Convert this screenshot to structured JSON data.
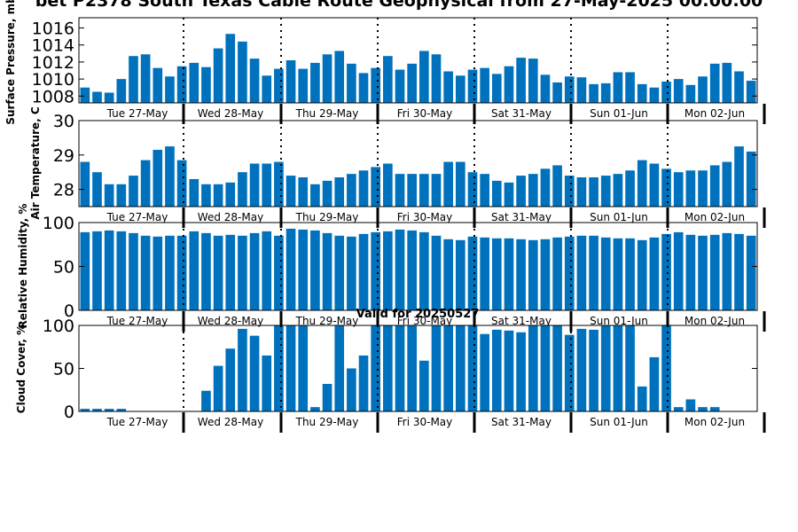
{
  "title": "bet P2378 South Texas Cable Route Geophysical from 27-May-2025 00:00:00",
  "subtitle": "Valid for 20250527",
  "colors": {
    "bar": "#0072BD",
    "axis": "#000000",
    "background": "#FFFFFF"
  },
  "chart_data": [
    {
      "type": "bar",
      "ylabel": "Surface Pressure, mb",
      "ylim": [
        1007.2,
        1017.2
      ],
      "yticks": [
        "1008",
        "1010",
        "1012",
        "1014",
        "1016"
      ],
      "day_labels": [
        "Tue 27-May",
        "Wed 28-May",
        "Thu 29-May",
        "Fri 30-May",
        "Sat 31-May",
        "Sun 01-Jun",
        "Mon 02-Jun"
      ],
      "values": [
        1009.0,
        1008.5,
        1008.4,
        1010.0,
        1012.7,
        1012.9,
        1011.3,
        1010.3,
        1011.5,
        1011.9,
        1011.4,
        1013.6,
        1015.3,
        1014.4,
        1012.4,
        1010.4,
        1011.2,
        1012.2,
        1011.2,
        1011.9,
        1012.9,
        1013.3,
        1011.8,
        1010.7,
        1011.3,
        1012.7,
        1011.1,
        1011.8,
        1013.3,
        1012.9,
        1010.9,
        1010.4,
        1011.1,
        1011.3,
        1010.6,
        1011.5,
        1012.5,
        1012.4,
        1010.5,
        1009.6,
        1010.3,
        1010.2,
        1009.4,
        1009.5,
        1010.8,
        1010.8,
        1009.4,
        1009.0,
        1009.7,
        1010.0,
        1009.3,
        1010.3,
        1011.8,
        1011.9,
        1010.9,
        1009.8
      ]
    },
    {
      "type": "bar",
      "ylabel": "Air Temperature, C",
      "ylim": [
        27.5,
        30
      ],
      "yticks": [
        "28",
        "29",
        "30"
      ],
      "day_labels": [
        "Tue 27-May",
        "Wed 28-May",
        "Thu 29-May",
        "Fri 30-May",
        "Sat 31-May",
        "Sun 01-Jun",
        "Mon 02-Jun"
      ],
      "values": [
        28.8,
        28.5,
        28.15,
        28.15,
        28.4,
        28.85,
        29.15,
        29.25,
        28.85,
        28.3,
        28.15,
        28.15,
        28.2,
        28.5,
        28.75,
        28.75,
        28.8,
        28.4,
        28.35,
        28.15,
        28.25,
        28.35,
        28.45,
        28.55,
        28.65,
        28.75,
        28.45,
        28.45,
        28.45,
        28.45,
        28.8,
        28.8,
        28.5,
        28.45,
        28.25,
        28.2,
        28.4,
        28.45,
        28.6,
        28.7,
        28.4,
        28.35,
        28.35,
        28.4,
        28.45,
        28.55,
        28.85,
        28.75,
        28.6,
        28.5,
        28.55,
        28.55,
        28.7,
        28.8,
        29.25,
        29.1
      ]
    },
    {
      "type": "bar",
      "ylabel": "Relative Humidity, %",
      "ylim": [
        0,
        100
      ],
      "yticks": [
        "0",
        "50",
        "100"
      ],
      "day_labels": [
        "Tue 27-May",
        "Wed 28-May",
        "Thu 29-May",
        "Fri 30-May",
        "Sat 31-May",
        "Sun 01-Jun",
        "Mon 02-Jun"
      ],
      "values": [
        89,
        90,
        91,
        90,
        88,
        85,
        84,
        85,
        85,
        90,
        88,
        85,
        86,
        85,
        88,
        90,
        85,
        93,
        92,
        91,
        88,
        85,
        84,
        87,
        89,
        90,
        92,
        91,
        89,
        85,
        81,
        80,
        84,
        83,
        82,
        82,
        81,
        80,
        81,
        83,
        84,
        85,
        85,
        83,
        82,
        82,
        80,
        83,
        87,
        89,
        86,
        85,
        86,
        88,
        87,
        85
      ]
    },
    {
      "type": "bar",
      "ylabel": "Cloud Cover, %",
      "ylim": [
        0,
        100
      ],
      "yticks": [
        "0",
        "50",
        "100"
      ],
      "day_labels": [
        "Tue 27-May",
        "Wed 28-May",
        "Thu 29-May",
        "Fri 30-May",
        "Sat 31-May",
        "Sun 01-Jun",
        "Mon 02-Jun"
      ],
      "values": [
        3,
        3,
        3,
        3,
        0,
        0,
        0,
        0,
        0,
        0,
        24,
        53,
        73,
        96,
        88,
        65,
        100,
        100,
        100,
        5,
        32,
        100,
        50,
        65,
        100,
        100,
        100,
        100,
        59,
        100,
        100,
        100,
        100,
        90,
        95,
        94,
        92,
        100,
        100,
        100,
        89,
        96,
        95,
        100,
        100,
        100,
        29,
        63,
        100,
        5,
        14,
        5,
        5,
        0,
        0,
        0
      ]
    }
  ]
}
